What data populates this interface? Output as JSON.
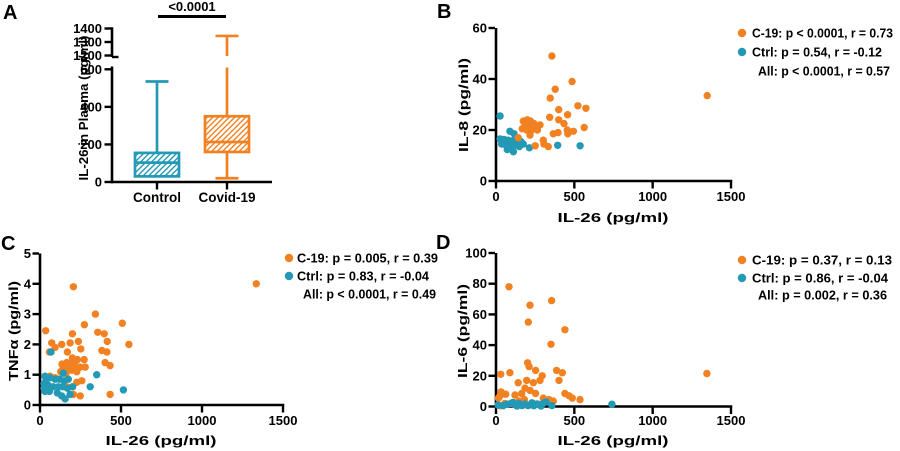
{
  "figure": {
    "background": "#ffffff",
    "accent_colors": {
      "covid_orange": "#F28122",
      "control_teal": "#2499B5",
      "axis_black": "#000000"
    }
  },
  "chart_data": [
    {
      "id": "A",
      "panel_label": "A",
      "type": "box",
      "ylabel": "IL-26 in Plasma (pg/ml)",
      "significance_label": "<0.0001",
      "categories": [
        "Control",
        "Covid-19"
      ],
      "y_axis": {
        "lower_ticks": [
          0,
          200,
          400,
          600
        ],
        "upper_ticks": [
          1200,
          1300,
          1400
        ],
        "break_between": [
          600,
          1200
        ]
      },
      "series": [
        {
          "name": "Control",
          "color": "#2499B5",
          "whisker_min": 30,
          "q1": 30,
          "median": 103,
          "q3": 155,
          "whisker_max": 535
        },
        {
          "name": "Covid-19",
          "color": "#F28122",
          "whisker_min": 20,
          "q1": 160,
          "median": 213,
          "q3": 350,
          "whisker_max": 1345
        }
      ]
    },
    {
      "id": "B",
      "panel_label": "B",
      "type": "scatter",
      "xlabel": "IL-26 (pg/ml)",
      "ylabel": "IL-8 (pg/ml)",
      "xlim": [
        0,
        1500
      ],
      "ylim": [
        0,
        60
      ],
      "x_ticks": [
        0,
        500,
        1000,
        1500
      ],
      "y_ticks": [
        0,
        20,
        40,
        60
      ],
      "legend": [
        {
          "text": "C-19: p < 0.0001, r = 0.73",
          "color": "#F28122"
        },
        {
          "text": "Ctrl: p = 0.54, r = -0.12",
          "color": "#2499B5"
        },
        {
          "text": "All: p < 0.0001, r = 0.57",
          "color": null
        }
      ],
      "top_series": "C-19",
      "series": [
        {
          "name": "C-19",
          "color": "#F28122",
          "points": [
            [
              357,
              49
            ],
            [
              486,
              39
            ],
            [
              378,
              36
            ],
            [
              346,
              32.5
            ],
            [
              1348,
              33.5
            ],
            [
              400,
              28
            ],
            [
              523,
              29.5
            ],
            [
              574,
              28.5
            ],
            [
              457,
              26
            ],
            [
              343,
              25
            ],
            [
              400,
              24
            ],
            [
              434,
              22.5
            ],
            [
              563,
              21
            ],
            [
              455,
              20
            ],
            [
              366,
              18.5
            ],
            [
              281,
              22
            ],
            [
              174,
              23.5
            ],
            [
              200,
              24
            ],
            [
              221,
              23.5
            ],
            [
              242,
              22.5
            ],
            [
              185,
              21.5
            ],
            [
              211,
              21.5
            ],
            [
              232,
              21
            ],
            [
              168,
              20.5
            ],
            [
              196,
              20
            ],
            [
              221,
              19.5
            ],
            [
              249,
              20.5
            ],
            [
              264,
              20
            ],
            [
              217,
              18
            ],
            [
              142,
              17
            ],
            [
              302,
              16
            ],
            [
              334,
              13.5
            ],
            [
              396,
              19
            ],
            [
              458,
              18.5
            ],
            [
              494,
              19.5
            ],
            [
              250,
              13.8
            ],
            [
              306,
              14.5
            ]
          ]
        },
        {
          "name": "Ctrl",
          "color": "#2499B5",
          "points": [
            [
              26,
              25.5
            ],
            [
              89,
              19.5
            ],
            [
              115,
              18.5
            ],
            [
              26,
              16.5
            ],
            [
              51,
              16.3
            ],
            [
              78,
              16
            ],
            [
              107,
              15.8
            ],
            [
              132,
              16
            ],
            [
              158,
              15.5
            ],
            [
              36,
              14.5
            ],
            [
              64,
              14
            ],
            [
              89,
              13.5
            ],
            [
              121,
              14
            ],
            [
              149,
              13.5
            ],
            [
              174,
              14.5
            ],
            [
              72,
              12.3
            ],
            [
              111,
              11.5
            ],
            [
              394,
              14
            ],
            [
              537,
              13.8
            ],
            [
              213,
              13
            ],
            [
              45,
              15
            ]
          ]
        }
      ]
    },
    {
      "id": "C",
      "panel_label": "C",
      "type": "scatter",
      "xlabel": "IL-26 (pg/ml)",
      "ylabel": "TNFα (pg/ml)",
      "xlim": [
        0,
        1500
      ],
      "ylim": [
        0,
        5
      ],
      "x_ticks": [
        0,
        500,
        1000,
        1500
      ],
      "y_ticks": [
        0,
        1,
        2,
        3,
        4,
        5
      ],
      "legend": [
        {
          "text": "C-19: p = 0.005, r = 0.39",
          "color": "#F28122"
        },
        {
          "text": "Ctrl: p = 0.83, r = -0.04",
          "color": "#2499B5"
        },
        {
          "text": "All: p < 0.0001, r = 0.49",
          "color": null
        }
      ],
      "top_series": "Ctrl",
      "series": [
        {
          "name": "C-19",
          "color": "#F28122",
          "points": [
            [
              206,
              3.9
            ],
            [
              1335,
              4.0
            ],
            [
              342,
              3.0
            ],
            [
              274,
              2.65
            ],
            [
              508,
              2.7
            ],
            [
              357,
              2.4
            ],
            [
              396,
              2.35
            ],
            [
              200,
              2.35
            ],
            [
              35,
              2.45
            ],
            [
              415,
              2.1
            ],
            [
              549,
              2.0
            ],
            [
              72,
              2.05
            ],
            [
              134,
              2.0
            ],
            [
              186,
              2.05
            ],
            [
              237,
              2.1
            ],
            [
              252,
              1.85
            ],
            [
              93,
              1.9
            ],
            [
              169,
              1.75
            ],
            [
              382,
              1.8
            ],
            [
              413,
              1.75
            ],
            [
              58,
              1.75
            ],
            [
              200,
              1.55
            ],
            [
              231,
              1.5
            ],
            [
              272,
              1.5
            ],
            [
              165,
              1.4
            ],
            [
              196,
              1.35
            ],
            [
              136,
              1.35
            ],
            [
              217,
              1.3
            ],
            [
              175,
              1.25
            ],
            [
              144,
              1.25
            ],
            [
              248,
              1.25
            ],
            [
              279,
              1.25
            ],
            [
              402,
              1.4
            ],
            [
              433,
              1.3
            ],
            [
              196,
              1.15
            ],
            [
              227,
              1.1
            ],
            [
              161,
              1.05
            ],
            [
              128,
              1.1
            ],
            [
              62,
              0.95
            ],
            [
              93,
              0.9
            ],
            [
              227,
              0.75
            ],
            [
              258,
              0.8
            ],
            [
              165,
              0.6
            ],
            [
              200,
              0.6
            ],
            [
              248,
              0.3
            ],
            [
              433,
              0.35
            ],
            [
              206,
              0.35
            ]
          ]
        },
        {
          "name": "Ctrl",
          "color": "#2499B5",
          "points": [
            [
              68,
              1.75
            ],
            [
              144,
              1.05
            ],
            [
              31,
              0.95
            ],
            [
              62,
              0.9
            ],
            [
              93,
              0.85
            ],
            [
              120,
              0.85
            ],
            [
              149,
              0.8
            ],
            [
              175,
              0.85
            ],
            [
              25,
              0.7
            ],
            [
              51,
              0.65
            ],
            [
              82,
              0.6
            ],
            [
              113,
              0.6
            ],
            [
              140,
              0.6
            ],
            [
              169,
              0.55
            ],
            [
              202,
              0.6
            ],
            [
              350,
              1.0
            ],
            [
              310,
              0.6
            ],
            [
              515,
              0.5
            ],
            [
              107,
              0.4
            ],
            [
              58,
              0.45
            ],
            [
              134,
              0.3
            ],
            [
              186,
              0.35
            ],
            [
              25,
              0.55
            ],
            [
              31,
              0.45
            ],
            [
              37,
              0.8
            ],
            [
              155,
              0.2
            ]
          ]
        }
      ]
    },
    {
      "id": "D",
      "panel_label": "D",
      "type": "scatter",
      "xlabel": "IL-26 (pg/ml)",
      "ylabel": "IL-6 (pg/ml)",
      "xlim": [
        0,
        1500
      ],
      "ylim": [
        0,
        100
      ],
      "x_ticks": [
        0,
        500,
        1000,
        1500
      ],
      "y_ticks": [
        0,
        20,
        40,
        60,
        80,
        100
      ],
      "legend": [
        {
          "text": "C-19: p = 0.37, r = 0.13",
          "color": "#F28122"
        },
        {
          "text": "Ctrl: p = 0.86, r = -0.04",
          "color": "#2499B5"
        },
        {
          "text": "All: p = 0.002, r = 0.36",
          "color": null
        }
      ],
      "top_series": "Ctrl",
      "series": [
        {
          "name": "C-19",
          "color": "#F28122",
          "points": [
            [
              83,
              78
            ],
            [
              355,
              69
            ],
            [
              217,
              66
            ],
            [
              206,
              55
            ],
            [
              440,
              50
            ],
            [
              351,
              40.5
            ],
            [
              202,
              28.5
            ],
            [
              211,
              26
            ],
            [
              253,
              23.5
            ],
            [
              295,
              20
            ],
            [
              89,
              22
            ],
            [
              30,
              21
            ],
            [
              26,
              7
            ],
            [
              15,
              5.5
            ],
            [
              142,
              15.5
            ],
            [
              196,
              17
            ],
            [
              238,
              15.5
            ],
            [
              281,
              17
            ],
            [
              387,
              23.5
            ],
            [
              423,
              22
            ],
            [
              402,
              17
            ],
            [
              185,
              12
            ],
            [
              217,
              10.5
            ],
            [
              253,
              8.5
            ],
            [
              164,
              8.5
            ],
            [
              121,
              7.5
            ],
            [
              62,
              8
            ],
            [
              32,
              9.5
            ],
            [
              440,
              8.5
            ],
            [
              466,
              7
            ],
            [
              487,
              5.5
            ],
            [
              536,
              4.5
            ],
            [
              302,
              5.5
            ],
            [
              338,
              4.5
            ],
            [
              366,
              3.5
            ],
            [
              181,
              4.5
            ],
            [
              147,
              3.5
            ],
            [
              232,
              2
            ],
            [
              270,
              1.5
            ],
            [
              57,
              2
            ],
            [
              27,
              0.5
            ],
            [
              1346,
              21.5
            ],
            [
              115,
              2.5
            ]
          ]
        },
        {
          "name": "Ctrl",
          "color": "#2499B5",
          "points": [
            [
              13,
              1
            ],
            [
              45,
              0.5
            ],
            [
              70,
              1.5
            ],
            [
              96,
              2
            ],
            [
              121,
              1.3
            ],
            [
              147,
              2
            ],
            [
              166,
              0.6
            ],
            [
              185,
              1.6
            ],
            [
              204,
              0.6
            ],
            [
              223,
              1.3
            ],
            [
              242,
              0.5
            ],
            [
              262,
              1.6
            ],
            [
              287,
              0.3
            ],
            [
              319,
              3
            ],
            [
              357,
              0.6
            ],
            [
              740,
              1.5
            ],
            [
              108,
              2.6
            ],
            [
              134,
              0.3
            ],
            [
              302,
              2.2
            ],
            [
              230,
              2.4
            ]
          ]
        }
      ]
    }
  ]
}
